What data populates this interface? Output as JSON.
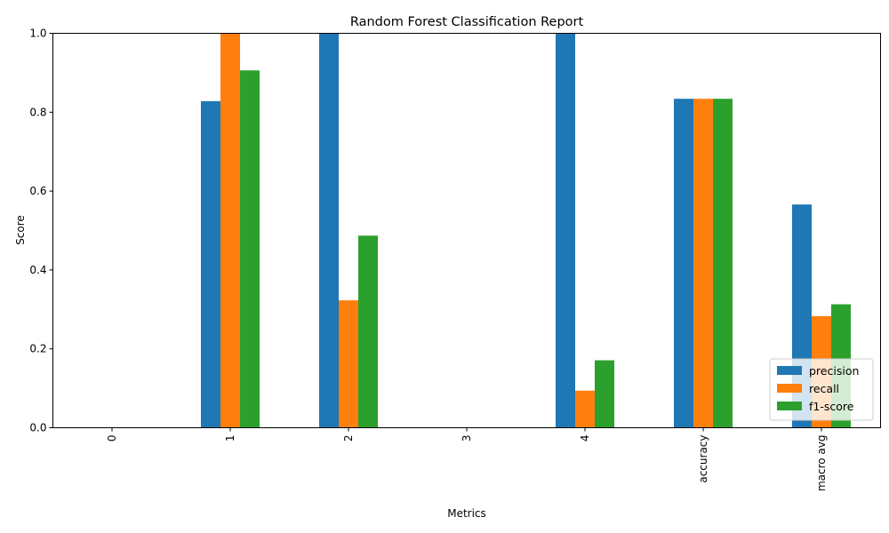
{
  "chart_data": {
    "type": "bar",
    "title": "Random Forest Classification Report",
    "xlabel": "Metrics",
    "ylabel": "Score",
    "categories": [
      "0",
      "1",
      "2",
      "3",
      "4",
      "accuracy",
      "macro avg"
    ],
    "series": [
      {
        "name": "precision",
        "color": "#1f77b4",
        "values": [
          0.0,
          0.828,
          1.0,
          0.0,
          1.0,
          0.834,
          0.566
        ]
      },
      {
        "name": "recall",
        "color": "#ff7f0e",
        "values": [
          0.0,
          1.0,
          0.323,
          0.0,
          0.094,
          0.834,
          0.283
        ]
      },
      {
        "name": "f1-score",
        "color": "#2ca02c",
        "values": [
          0.0,
          0.906,
          0.487,
          0.0,
          0.171,
          0.834,
          0.313
        ]
      }
    ],
    "ylim": [
      0,
      1
    ],
    "yticks": [
      "0.0",
      "0.2",
      "0.4",
      "0.6",
      "0.8",
      "1.0"
    ],
    "legend_position": "lower-right",
    "grid": false
  }
}
